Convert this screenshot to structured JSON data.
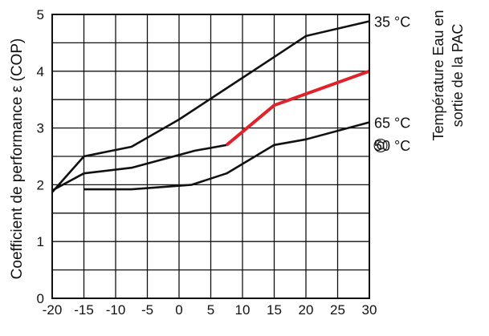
{
  "chart_data": {
    "type": "line",
    "title": "",
    "xlabel": "",
    "ylabel": "Coefficient de performance ε (COP)",
    "xlim": [
      -20,
      30
    ],
    "ylim": [
      0,
      5
    ],
    "x_ticks": [
      -20,
      -15,
      -10,
      -5,
      0,
      5,
      10,
      15,
      20,
      25,
      30
    ],
    "x_tick_labels": [
      "-20",
      "-15",
      "-10",
      "-5",
      "0",
      "5",
      "10",
      "15",
      "20",
      "25",
      "30"
    ],
    "y_ticks": [
      0,
      1,
      2,
      3,
      4,
      5
    ],
    "y_tick_labels": [
      "0",
      "1",
      "2",
      "3",
      "4",
      "5"
    ],
    "grid": true,
    "legend_title": [
      "Température Eau en",
      "sortie de la PAC"
    ],
    "copyright_symbol": "©",
    "series": [
      {
        "name": "35 °C",
        "color": "#111111",
        "x": [
          -20,
          -15,
          -7.5,
          0,
          7.5,
          15,
          20,
          30
        ],
        "y": [
          1.87,
          2.5,
          2.67,
          3.15,
          3.7,
          4.25,
          4.62,
          4.88
        ]
      },
      {
        "name": "50 °C",
        "color": "#111111",
        "x": [
          -20,
          -15,
          -7.5,
          2.5,
          7.5
        ],
        "y": [
          1.9,
          2.2,
          2.3,
          2.6,
          2.7
        ]
      },
      {
        "name": "50 °C",
        "color": "#e0222b",
        "x": [
          7.5,
          15,
          20,
          30
        ],
        "y": [
          2.7,
          3.4,
          3.6,
          4.0
        ]
      },
      {
        "name": "65 °C",
        "color": "#111111",
        "x": [
          -15,
          -7.5,
          2,
          7.5,
          15,
          20,
          30
        ],
        "y": [
          1.92,
          1.92,
          2.0,
          2.2,
          2.7,
          2.8,
          3.1
        ]
      }
    ]
  }
}
